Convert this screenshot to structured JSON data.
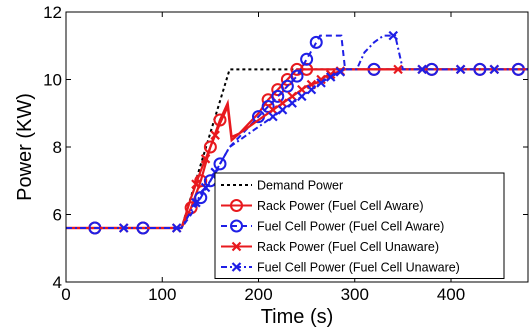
{
  "chart_data": {
    "type": "line",
    "title": "",
    "xlabel": "Time (s)",
    "ylabel": "Power (KW)",
    "xlim": [
      0,
      480
    ],
    "ylim": [
      4,
      12
    ],
    "xticks": [
      0,
      100,
      200,
      300,
      400
    ],
    "yticks": [
      4,
      6,
      8,
      10,
      12
    ],
    "grid": false,
    "legend_position": "bottom-right",
    "series": [
      {
        "name": "Demand Power",
        "color": "#000000",
        "dash": "dotted",
        "marker": "none",
        "x": [
          0,
          120,
          170,
          480
        ],
        "y": [
          5.6,
          5.6,
          10.3,
          10.3
        ],
        "markers_x": []
      },
      {
        "name": "Rack Power (Fuel Cell Aware)",
        "color": "#e8191e",
        "dash": "solid",
        "marker": "circle",
        "x": [
          0,
          120,
          130,
          140,
          150,
          160,
          168,
          172,
          180,
          190,
          200,
          210,
          220,
          230,
          240,
          250,
          480
        ],
        "y": [
          5.6,
          5.6,
          6.2,
          7.0,
          8.0,
          8.8,
          9.3,
          8.3,
          8.4,
          8.7,
          9.0,
          9.4,
          9.7,
          10.0,
          10.3,
          10.3,
          10.3
        ],
        "markers_x": [
          30,
          80,
          130,
          140,
          150,
          160,
          210,
          220,
          230,
          240,
          250,
          320,
          380,
          430,
          470
        ]
      },
      {
        "name": "Fuel Cell Power (Fuel Cell Aware)",
        "color": "#1f1fe6",
        "dash": "dashed",
        "marker": "circle",
        "x": [
          0,
          120,
          130,
          140,
          150,
          160,
          170,
          180,
          190,
          200,
          210,
          220,
          230,
          240,
          250,
          260,
          264,
          280,
          286,
          290,
          300,
          310,
          320,
          480
        ],
        "y": [
          5.6,
          5.6,
          6.0,
          6.5,
          7.0,
          7.5,
          8.0,
          8.3,
          8.6,
          8.9,
          9.2,
          9.5,
          9.8,
          10.1,
          10.6,
          11.1,
          11.3,
          11.3,
          11.3,
          10.3,
          10.3,
          10.3,
          10.3,
          10.3
        ],
        "markers_x": [
          30,
          80,
          140,
          150,
          160,
          200,
          210,
          220,
          230,
          240,
          250,
          260,
          320,
          380,
          430,
          470
        ]
      },
      {
        "name": "Rack Power (Fuel Cell Unaware)",
        "color": "#e8191e",
        "dash": "solid",
        "marker": "x",
        "x": [
          0,
          120,
          130,
          140,
          150,
          160,
          168,
          172,
          180,
          190,
          200,
          210,
          220,
          230,
          240,
          250,
          260,
          270,
          280,
          290,
          300,
          480
        ],
        "y": [
          5.6,
          5.6,
          6.5,
          7.3,
          8.0,
          8.7,
          9.2,
          8.2,
          8.4,
          8.6,
          8.8,
          9.0,
          9.2,
          9.4,
          9.6,
          9.8,
          9.9,
          10.1,
          10.2,
          10.3,
          10.3,
          10.3
        ],
        "markers_x": [
          60,
          115,
          135,
          145,
          155,
          215,
          225,
          235,
          245,
          255,
          265,
          275,
          285,
          345,
          370,
          410,
          445
        ]
      },
      {
        "name": "Fuel Cell Power (Fuel Cell Unaware)",
        "color": "#1f1fe6",
        "dash": "dashdot",
        "marker": "x",
        "x": [
          0,
          120,
          130,
          140,
          150,
          160,
          170,
          180,
          190,
          200,
          210,
          220,
          230,
          240,
          250,
          260,
          270,
          280,
          290,
          296,
          302,
          310,
          320,
          330,
          342,
          350,
          360,
          480
        ],
        "y": [
          5.6,
          5.6,
          6.1,
          6.6,
          7.0,
          7.5,
          8.0,
          8.2,
          8.4,
          8.6,
          8.8,
          9.0,
          9.2,
          9.4,
          9.6,
          9.8,
          10.0,
          10.15,
          10.3,
          10.3,
          10.3,
          10.8,
          11.1,
          11.3,
          11.3,
          10.3,
          10.3,
          10.3
        ],
        "markers_x": [
          60,
          115,
          135,
          145,
          155,
          215,
          225,
          235,
          245,
          255,
          265,
          275,
          285,
          340,
          370,
          410,
          445
        ]
      }
    ]
  }
}
